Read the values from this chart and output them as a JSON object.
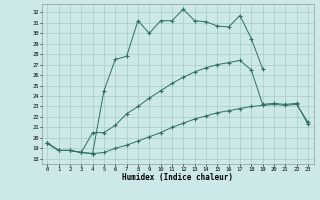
{
  "xlabel": "Humidex (Indice chaleur)",
  "background_color": "#cce8e8",
  "grid_color": "#aacccc",
  "line_color": "#2d6e65",
  "xlim": [
    -0.5,
    23.5
  ],
  "ylim": [
    17.5,
    32.8
  ],
  "yticks": [
    18,
    19,
    20,
    21,
    22,
    23,
    24,
    25,
    26,
    27,
    28,
    29,
    30,
    31,
    32
  ],
  "xticks": [
    0,
    1,
    2,
    3,
    4,
    5,
    6,
    7,
    8,
    9,
    10,
    11,
    12,
    13,
    14,
    15,
    16,
    17,
    18,
    19,
    20,
    21,
    22,
    23
  ],
  "line1_y": [
    19.5,
    18.8,
    18.8,
    18.6,
    18.5,
    24.5,
    27.5,
    27.8,
    31.2,
    30.0,
    31.2,
    31.2,
    32.3,
    31.2,
    31.1,
    30.7,
    30.6,
    31.7,
    29.5,
    26.6,
    null,
    null,
    null,
    null
  ],
  "line2_y": [
    19.5,
    18.8,
    18.8,
    18.6,
    20.5,
    20.5,
    21.2,
    22.3,
    23.0,
    23.8,
    24.5,
    25.2,
    25.8,
    26.3,
    26.7,
    27.0,
    27.2,
    27.4,
    26.5,
    23.2,
    23.3,
    23.2,
    23.3,
    21.3
  ],
  "line3_y": [
    19.5,
    18.8,
    18.8,
    18.6,
    18.5,
    18.6,
    19.0,
    19.3,
    19.7,
    20.1,
    20.5,
    21.0,
    21.4,
    21.8,
    22.1,
    22.4,
    22.6,
    22.8,
    23.0,
    23.1,
    23.2,
    23.1,
    23.2,
    21.5
  ]
}
